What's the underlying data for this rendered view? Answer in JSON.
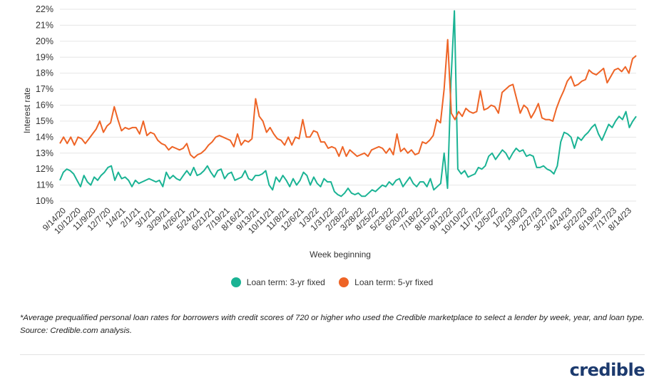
{
  "chart_data": {
    "type": "line",
    "title": "",
    "xlabel": "Week beginning",
    "ylabel": "Interest rate",
    "ylim": [
      10,
      22
    ],
    "yticks": [
      "10%",
      "11%",
      "12%",
      "13%",
      "14%",
      "15%",
      "16%",
      "17%",
      "18%",
      "19%",
      "20%",
      "21%",
      "22%"
    ],
    "xticks": [
      "9/14/20",
      "10/12/20",
      "11/9/20",
      "12/7/20",
      "1/4/21",
      "2/1/21",
      "3/1/21",
      "3/29/21",
      "4/26/21",
      "5/24/21",
      "6/21/21",
      "7/19/21",
      "8/16/21",
      "9/13/21",
      "10/11/21",
      "11/8/21",
      "12/6/21",
      "1/3/22",
      "1/31/22",
      "2/28/22",
      "3/28/22",
      "4/25/22",
      "5/23/22",
      "6/20/22",
      "7/18/22",
      "8/15/22",
      "9/12/22",
      "10/10/22",
      "11/7/22",
      "12/5/22",
      "1/2/23",
      "1/30/23",
      "2/27/23",
      "3/27/23",
      "4/24/23",
      "5/22/23",
      "6/19/23",
      "7/17/23",
      "8/14/23"
    ],
    "legend_position": "bottom",
    "grid": "horizontal",
    "series": [
      {
        "name": "Loan term: 3-yr fixed",
        "color": "#1ab394",
        "values": [
          11.3,
          11.8,
          12.0,
          11.9,
          11.7,
          11.3,
          10.9,
          11.6,
          11.2,
          11.0,
          11.5,
          11.3,
          11.6,
          11.8,
          12.1,
          12.2,
          11.3,
          11.8,
          11.4,
          11.5,
          11.3,
          10.9,
          11.3,
          11.1,
          11.2,
          11.3,
          11.4,
          11.3,
          11.2,
          11.3,
          10.9,
          11.8,
          11.4,
          11.6,
          11.4,
          11.3,
          11.6,
          11.9,
          11.6,
          12.1,
          11.6,
          11.7,
          11.9,
          12.2,
          11.8,
          11.5,
          11.9,
          12.0,
          11.4,
          11.7,
          11.8,
          11.3,
          11.4,
          11.5,
          11.9,
          11.4,
          11.3,
          11.6,
          11.6,
          11.7,
          11.9,
          11.0,
          10.7,
          11.5,
          11.2,
          11.6,
          11.3,
          10.9,
          11.4,
          11.0,
          11.3,
          11.8,
          11.6,
          11.0,
          11.5,
          11.1,
          10.9,
          11.4,
          11.2,
          11.2,
          10.6,
          10.4,
          10.3,
          10.5,
          10.8,
          10.5,
          10.4,
          10.5,
          10.3,
          10.3,
          10.5,
          10.7,
          10.6,
          10.8,
          11.0,
          10.9,
          11.2,
          11.0,
          11.3,
          11.4,
          10.9,
          11.2,
          11.5,
          11.1,
          10.9,
          11.2,
          11.2,
          10.9,
          11.4,
          10.7,
          10.9,
          11.1,
          13.0,
          10.8,
          17.5,
          21.9,
          12.0,
          11.7,
          11.9,
          11.5,
          11.6,
          11.7,
          12.1,
          12.0,
          12.2,
          12.8,
          13.0,
          12.6,
          12.9,
          13.2,
          13.0,
          12.6,
          13.0,
          13.3,
          13.1,
          13.2,
          12.8,
          12.9,
          12.8,
          12.1,
          12.1,
          12.2,
          12.0,
          11.9,
          11.7,
          12.2,
          13.7,
          14.3,
          14.2,
          14.0,
          13.3,
          14.0,
          13.8,
          14.1,
          14.3,
          14.6,
          14.8,
          14.2,
          13.8,
          14.3,
          14.8,
          14.6,
          15.0,
          15.3,
          15.1,
          15.6,
          14.6,
          15.0,
          15.3
        ]
      },
      {
        "name": "Loan term: 5-yr fixed",
        "color": "#ee6426",
        "values": [
          13.6,
          14.0,
          13.6,
          14.0,
          13.5,
          14.0,
          13.9,
          13.6,
          13.9,
          14.2,
          14.5,
          15.0,
          14.3,
          14.7,
          14.9,
          15.9,
          15.1,
          14.4,
          14.6,
          14.5,
          14.6,
          14.6,
          14.2,
          15.0,
          14.1,
          14.3,
          14.2,
          13.8,
          13.6,
          13.5,
          13.2,
          13.4,
          13.3,
          13.2,
          13.3,
          13.6,
          12.9,
          12.7,
          12.9,
          13.0,
          13.2,
          13.5,
          13.7,
          14.0,
          14.1,
          14.0,
          13.9,
          13.8,
          13.4,
          14.2,
          13.5,
          13.8,
          13.7,
          13.9,
          16.4,
          15.3,
          15.0,
          14.3,
          14.6,
          14.2,
          13.9,
          13.8,
          13.5,
          14.0,
          13.5,
          14.0,
          13.9,
          15.1,
          14.0,
          14.0,
          14.4,
          14.3,
          13.7,
          13.7,
          13.3,
          13.4,
          13.3,
          12.8,
          13.4,
          12.8,
          13.2,
          13.0,
          12.8,
          12.9,
          13.0,
          12.8,
          13.2,
          13.3,
          13.4,
          13.3,
          13.0,
          13.3,
          12.9,
          14.2,
          13.1,
          13.3,
          13.0,
          13.2,
          12.9,
          13.0,
          13.7,
          13.6,
          13.8,
          14.1,
          15.1,
          14.9,
          17.0,
          20.1,
          15.5,
          15.1,
          15.6,
          15.3,
          15.8,
          15.6,
          15.5,
          15.6,
          16.9,
          15.7,
          15.8,
          16.0,
          15.9,
          15.5,
          16.8,
          17.0,
          17.2,
          17.3,
          16.4,
          15.5,
          16.0,
          15.8,
          15.2,
          15.6,
          16.1,
          15.2,
          15.1,
          15.1,
          15.0,
          15.8,
          16.4,
          16.9,
          17.5,
          17.8,
          17.2,
          17.3,
          17.5,
          17.6,
          18.2,
          18.0,
          17.9,
          18.1,
          18.3,
          17.4,
          17.8,
          18.2,
          18.3,
          18.1,
          18.4,
          18.0,
          18.9,
          19.1
        ]
      }
    ]
  },
  "footnote": "*Average prequalified personal loan rates for borrowers with credit scores of 720 or higher who used the Credible marketplace to select a lender by week, year, and loan type. Source: Credible.com analysis.",
  "logo_text": "credible"
}
